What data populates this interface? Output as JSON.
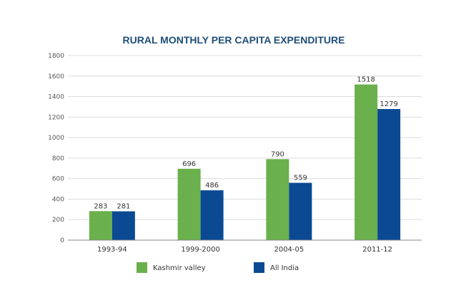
{
  "chart_data": {
    "type": "bar",
    "title": "RURAL MONTHLY PER CAPITA EXPENDITURE",
    "xlabel": "",
    "ylabel": "",
    "categories": [
      "1993-94",
      "1999-2000",
      "2004-05",
      "2011-12"
    ],
    "series": [
      {
        "name": "Kashmir valley",
        "color": "#6ab04c",
        "values": [
          283,
          696,
          790,
          1518
        ]
      },
      {
        "name": "All India",
        "color": "#0b4a92",
        "values": [
          281,
          486,
          559,
          1279
        ]
      }
    ],
    "ylim": [
      0,
      1800
    ],
    "yticks": [
      0,
      200,
      400,
      600,
      800,
      1000,
      1200,
      1400,
      1600,
      1800
    ],
    "grid": true,
    "legend_position": "bottom",
    "data_labels": true
  }
}
